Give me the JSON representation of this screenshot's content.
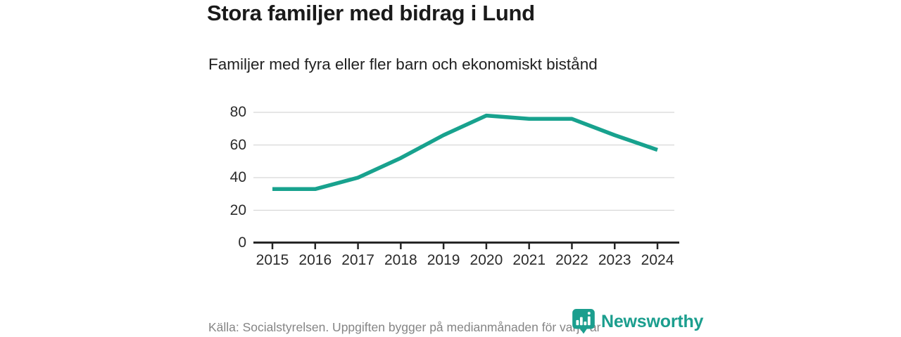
{
  "header": {
    "title": "Stora familjer med bidrag i Lund",
    "subtitle": "Familjer med fyra eller fler barn och ekonomiskt bistånd"
  },
  "footer": {
    "source": "Källa: Socialstyrelsen. Uppgiften bygger på medianmånaden för varje år",
    "brand_name": "Newsworthy",
    "brand_logo_icon": "shield-bar-chart-icon"
  },
  "colors": {
    "line": "#18a28e",
    "brand": "#1b9e8e",
    "grid": "#d8d8d8",
    "axis": "#262626",
    "tick_label": "#2b2b2b",
    "source_text": "#858585",
    "title_text": "#1a1a1a"
  },
  "chart_data": {
    "type": "line",
    "title": "Stora familjer med bidrag i Lund",
    "subtitle": "Familjer med fyra eller fler barn och ekonomiskt bistånd",
    "categories": [
      "2015",
      "2016",
      "2017",
      "2018",
      "2019",
      "2020",
      "2021",
      "2022",
      "2023",
      "2024"
    ],
    "values": [
      33,
      33,
      40,
      52,
      66,
      78,
      76,
      76,
      66,
      57
    ],
    "series_name": "Familjer med fyra eller fler barn och ekonomiskt bistånd",
    "xlabel": "",
    "ylabel": "",
    "ylim": [
      0,
      80
    ],
    "yticks": [
      0,
      20,
      40,
      60,
      80
    ],
    "grid": "horizontal",
    "legend": "none",
    "line_color": "#18a28e"
  }
}
